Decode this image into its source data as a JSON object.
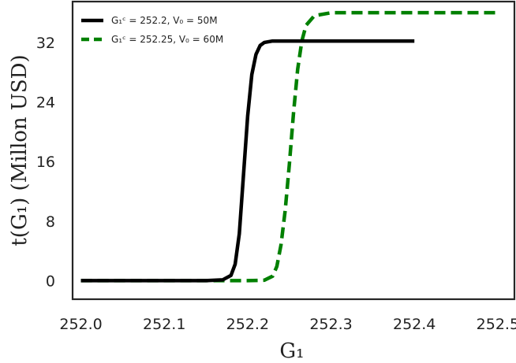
{
  "chart_data": {
    "type": "line",
    "xlabel": "G₁",
    "ylabel": "t(G₁) (Millon USD)",
    "xlim": [
      251.99,
      252.52
    ],
    "ylim": [
      -2.5,
      37.5
    ],
    "xticks": [
      252.0,
      252.1,
      252.2,
      252.3,
      252.4,
      252.5
    ],
    "xtick_labels": [
      "252.0",
      "252.1",
      "252.2",
      "252.3",
      "252.4",
      "252.5"
    ],
    "yticks": [
      0,
      8,
      16,
      24,
      32
    ],
    "ytick_labels": [
      "0",
      "8",
      "16",
      "24",
      "32"
    ],
    "grid": false,
    "legend_position": "top-left",
    "series": [
      {
        "name": "G₁ᶜ = 252.2, V₀ = 50M",
        "color": "#000000",
        "style": "solid",
        "x": [
          252.0,
          252.05,
          252.1,
          252.15,
          252.17,
          252.18,
          252.185,
          252.19,
          252.195,
          252.2,
          252.205,
          252.21,
          252.215,
          252.22,
          252.23,
          252.25,
          252.3,
          252.35,
          252.4
        ],
        "values": [
          0.0,
          0.0,
          0.0,
          0.0,
          0.1,
          0.7,
          2.2,
          6.3,
          14.2,
          22.1,
          27.7,
          30.4,
          31.6,
          32.0,
          32.2,
          32.2,
          32.2,
          32.2,
          32.2
        ]
      },
      {
        "name": "G₁ᶜ = 252.25, V₀ = 60M",
        "color": "#008000",
        "style": "dashed",
        "x": [
          252.0,
          252.05,
          252.1,
          252.15,
          252.2,
          252.22,
          252.23,
          252.235,
          252.24,
          252.245,
          252.25,
          252.255,
          252.26,
          252.265,
          252.27,
          252.28,
          252.3,
          252.35,
          252.4,
          252.45,
          252.5
        ],
        "values": [
          0.0,
          0.0,
          0.0,
          0.0,
          0.0,
          0.05,
          0.6,
          1.9,
          4.8,
          9.4,
          15.6,
          22.5,
          28.4,
          32.2,
          34.3,
          35.6,
          36.0,
          36.0,
          36.0,
          36.0,
          36.0
        ]
      }
    ]
  }
}
